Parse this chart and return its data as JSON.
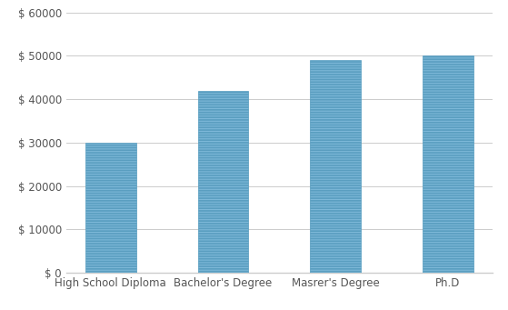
{
  "categories": [
    "High School Diploma",
    "Bachelor's Degree",
    "Masrer's Degree",
    "Ph.D"
  ],
  "values": [
    30000,
    42000,
    49000,
    50000
  ],
  "bar_color_face": "#7db8d8",
  "bar_color_edge": "#5a9ec0",
  "ylim": [
    0,
    60000
  ],
  "yticks": [
    0,
    10000,
    20000,
    30000,
    40000,
    50000,
    60000
  ],
  "ytick_labels": [
    "$ 0",
    "$ 10000",
    "$ 20000",
    "$ 30000",
    "$ 40000",
    "$ 50000",
    "$ 60000"
  ],
  "background_color": "#ffffff",
  "grid_color": "#cccccc",
  "tick_label_color": "#555555",
  "bar_width": 0.45,
  "hatch_color": "#ffffff",
  "figsize": [
    5.59,
    3.41
  ],
  "dpi": 100
}
